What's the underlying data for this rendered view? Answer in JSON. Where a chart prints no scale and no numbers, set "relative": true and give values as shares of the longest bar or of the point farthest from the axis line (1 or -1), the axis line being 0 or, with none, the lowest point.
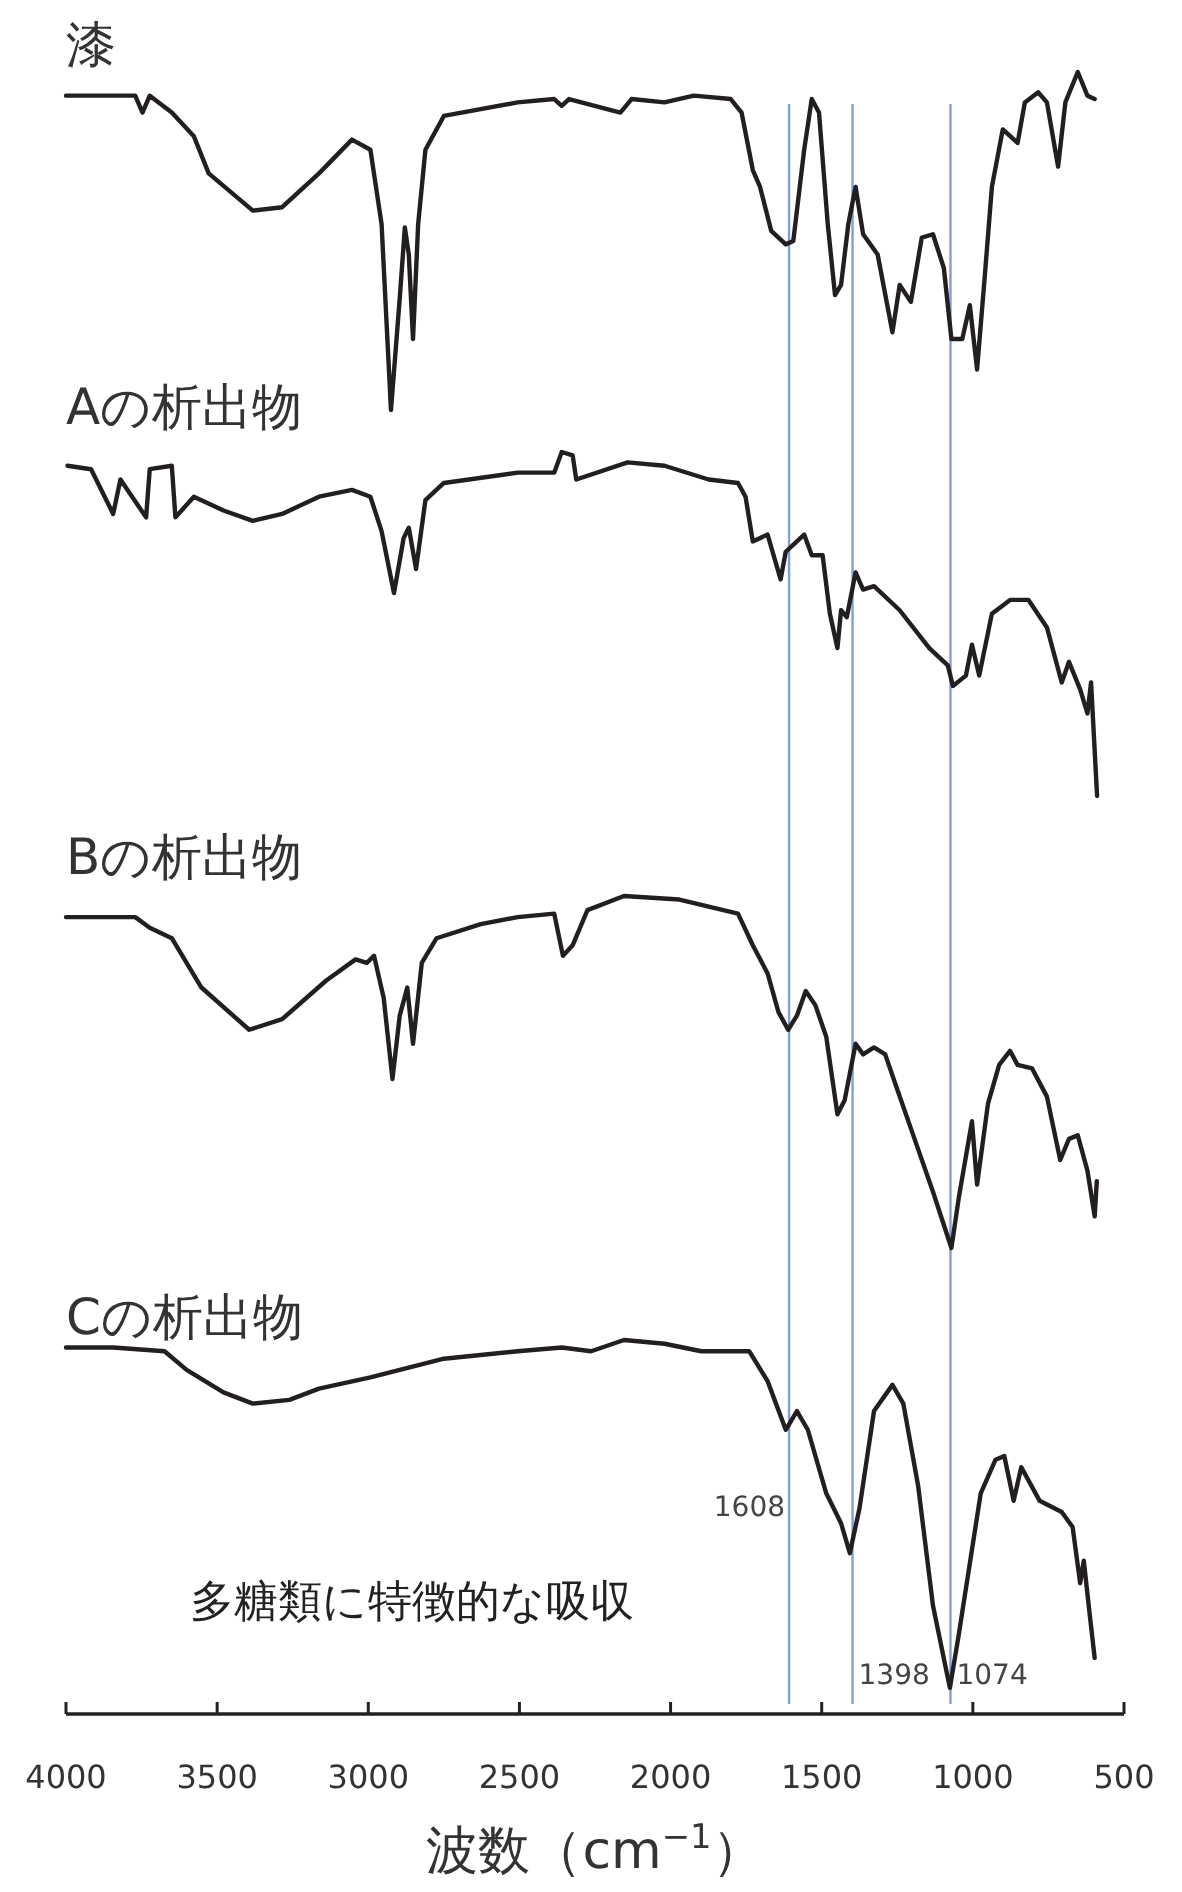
{
  "chart_data": [
    {
      "type": "line",
      "title": "漆",
      "relative": true,
      "xlim": [
        4000,
        500
      ],
      "tick_labels": false,
      "x": [
        4000,
        3771,
        3747,
        3723,
        3650,
        3577,
        3528,
        3382,
        3285,
        3163,
        3054,
        2993,
        2956,
        2925,
        2896,
        2879,
        2866,
        2852,
        2835,
        2811,
        2750,
        2506,
        2385,
        2360,
        2336,
        2166,
        2129,
        2020,
        1923,
        1801,
        1765,
        1728,
        1704,
        1667,
        1619,
        1594,
        1558,
        1533,
        1509,
        1480,
        1456,
        1436,
        1412,
        1388,
        1363,
        1315,
        1266,
        1242,
        1205,
        1169,
        1132,
        1096,
        1071,
        1035,
        1010,
        986,
        962,
        937,
        901,
        852,
        828,
        784,
        755,
        718,
        694,
        653,
        621,
        597
      ],
      "series": [
        {
          "color": "#231f20",
          "values": [
            0.93,
            0.93,
            0.88,
            0.93,
            0.88,
            0.81,
            0.7,
            0.59,
            0.6,
            0.7,
            0.8,
            0.77,
            0.55,
            0,
            0.33,
            0.54,
            0.46,
            0.21,
            0.55,
            0.77,
            0.87,
            0.91,
            0.92,
            0.9,
            0.92,
            0.88,
            0.92,
            0.91,
            0.93,
            0.92,
            0.88,
            0.71,
            0.66,
            0.53,
            0.49,
            0.5,
            0.77,
            0.92,
            0.88,
            0.55,
            0.34,
            0.37,
            0.55,
            0.66,
            0.52,
            0.46,
            0.23,
            0.37,
            0.32,
            0.51,
            0.52,
            0.42,
            0.21,
            0.21,
            0.31,
            0.12,
            0.38,
            0.66,
            0.83,
            0.79,
            0.91,
            0.94,
            0.91,
            0.72,
            0.91,
            1,
            0.93,
            0.92
          ]
        }
      ],
      "ref_lines": [
        {
          "axis": "x",
          "value": 1608,
          "color": "#7f9fd8"
        },
        {
          "axis": "x",
          "value": 1398,
          "color": "#7f9fd8"
        },
        {
          "axis": "x",
          "value": 1074,
          "color": "#7f9fd8"
        }
      ]
    },
    {
      "type": "line",
      "title": "Aの析出物",
      "relative": true,
      "xlim": [
        4000,
        500
      ],
      "tick_labels": false,
      "x": [
        3995,
        3917,
        3844,
        3820,
        3735,
        3723,
        3650,
        3638,
        3577,
        3479,
        3382,
        3285,
        3163,
        3054,
        2993,
        2956,
        2915,
        2883,
        2866,
        2842,
        2811,
        2750,
        2506,
        2385,
        2360,
        2324,
        2312,
        2142,
        2020,
        1874,
        1777,
        1752,
        1728,
        1679,
        1636,
        1619,
        1558,
        1533,
        1497,
        1473,
        1448,
        1436,
        1417,
        1388,
        1363,
        1327,
        1242,
        1144,
        1083,
        1066,
        1023,
        1003,
        979,
        937,
        877,
        816,
        755,
        706,
        682,
        645,
        621,
        609,
        589
      ],
      "series": [
        {
          "color": "#231f20",
          "values": [
            0.96,
            0.95,
            0.82,
            0.92,
            0.81,
            0.95,
            0.96,
            0.81,
            0.87,
            0.83,
            0.8,
            0.82,
            0.87,
            0.89,
            0.87,
            0.77,
            0.59,
            0.75,
            0.78,
            0.66,
            0.86,
            0.91,
            0.94,
            0.94,
            1,
            0.99,
            0.92,
            0.97,
            0.96,
            0.92,
            0.91,
            0.87,
            0.74,
            0.76,
            0.63,
            0.71,
            0.76,
            0.7,
            0.7,
            0.53,
            0.43,
            0.54,
            0.52,
            0.65,
            0.6,
            0.61,
            0.54,
            0.43,
            0.38,
            0.32,
            0.35,
            0.44,
            0.35,
            0.53,
            0.57,
            0.57,
            0.49,
            0.33,
            0.39,
            0.31,
            0.24,
            0.33,
            0
          ]
        }
      ],
      "ref_lines": [
        {
          "axis": "x",
          "value": 1608,
          "color": "#7f9fd8"
        },
        {
          "axis": "x",
          "value": 1398,
          "color": "#7f9fd8"
        },
        {
          "axis": "x",
          "value": 1074,
          "color": "#7f9fd8"
        }
      ]
    },
    {
      "type": "line",
      "title": "Bの析出物",
      "relative": true,
      "xlim": [
        4000,
        500
      ],
      "tick_labels": false,
      "x": [
        4000,
        3771,
        3723,
        3650,
        3552,
        3394,
        3285,
        3139,
        3042,
        3005,
        2981,
        2949,
        2920,
        2896,
        2871,
        2852,
        2823,
        2774,
        2628,
        2506,
        2385,
        2356,
        2324,
        2275,
        2154,
        1971,
        1777,
        1728,
        1679,
        1643,
        1611,
        1582,
        1553,
        1521,
        1485,
        1448,
        1424,
        1388,
        1363,
        1327,
        1290,
        1254,
        1193,
        1132,
        1071,
        1047,
        1003,
        986,
        950,
        913,
        877,
        852,
        804,
        755,
        711,
        682,
        653,
        621,
        597,
        590
      ],
      "series": [
        {
          "color": "#231f20",
          "values": [
            0.94,
            0.94,
            0.91,
            0.88,
            0.74,
            0.62,
            0.65,
            0.76,
            0.82,
            0.81,
            0.83,
            0.71,
            0.48,
            0.66,
            0.74,
            0.58,
            0.81,
            0.88,
            0.92,
            0.94,
            0.95,
            0.83,
            0.86,
            0.96,
            1,
            0.99,
            0.95,
            0.86,
            0.78,
            0.67,
            0.62,
            0.66,
            0.73,
            0.69,
            0.6,
            0.38,
            0.42,
            0.58,
            0.55,
            0.57,
            0.55,
            0.46,
            0.31,
            0.16,
            0,
            0.14,
            0.36,
            0.18,
            0.41,
            0.52,
            0.56,
            0.52,
            0.51,
            0.43,
            0.25,
            0.31,
            0.32,
            0.22,
            0.09,
            0.19
          ]
        }
      ],
      "ref_lines": [
        {
          "axis": "x",
          "value": 1608,
          "color": "#7f9fd8"
        },
        {
          "axis": "x",
          "value": 1398,
          "color": "#7f9fd8"
        },
        {
          "axis": "x",
          "value": 1074,
          "color": "#7f9fd8"
        }
      ]
    },
    {
      "type": "line",
      "title": "Cの析出物",
      "relative": true,
      "xlim": [
        4000,
        500
      ],
      "tick_labels": "x",
      "xlabel": "波数（cm$^{−1}$）",
      "xticks": [
        4000,
        3500,
        3000,
        2500,
        2000,
        1500,
        1000,
        500
      ],
      "annotations": [
        "多糖類に特徴的な吸収"
      ],
      "x": [
        4000,
        3844,
        3674,
        3601,
        3479,
        3382,
        3261,
        3163,
        2993,
        2847,
        2750,
        2506,
        2360,
        2263,
        2154,
        2020,
        1898,
        1740,
        1679,
        1619,
        1582,
        1546,
        1485,
        1436,
        1407,
        1375,
        1327,
        1266,
        1230,
        1181,
        1132,
        1076,
        1047,
        974,
        925,
        896,
        865,
        840,
        779,
        706,
        670,
        645,
        633,
        614,
        597
      ],
      "series": [
        {
          "color": "#231f20",
          "values": [
            0.98,
            0.98,
            0.97,
            0.92,
            0.86,
            0.83,
            0.84,
            0.87,
            0.9,
            0.93,
            0.95,
            0.97,
            0.98,
            0.97,
            1,
            0.99,
            0.97,
            0.97,
            0.89,
            0.76,
            0.81,
            0.76,
            0.59,
            0.51,
            0.43,
            0.55,
            0.81,
            0.88,
            0.83,
            0.61,
            0.29,
            0.07,
            0.21,
            0.59,
            0.68,
            0.69,
            0.57,
            0.66,
            0.57,
            0.54,
            0.5,
            0.35,
            0.41,
            0.27,
            0.15
          ]
        }
      ],
      "ref_lines": [
        {
          "axis": "x",
          "value": 1608,
          "label": "1608",
          "color": "#7f9fd8"
        },
        {
          "axis": "x",
          "value": 1398,
          "label": "1398",
          "color": "#7f9fd8"
        },
        {
          "axis": "x",
          "value": 1074,
          "label": "1074",
          "color": "#7f9fd8"
        }
      ]
    }
  ]
}
